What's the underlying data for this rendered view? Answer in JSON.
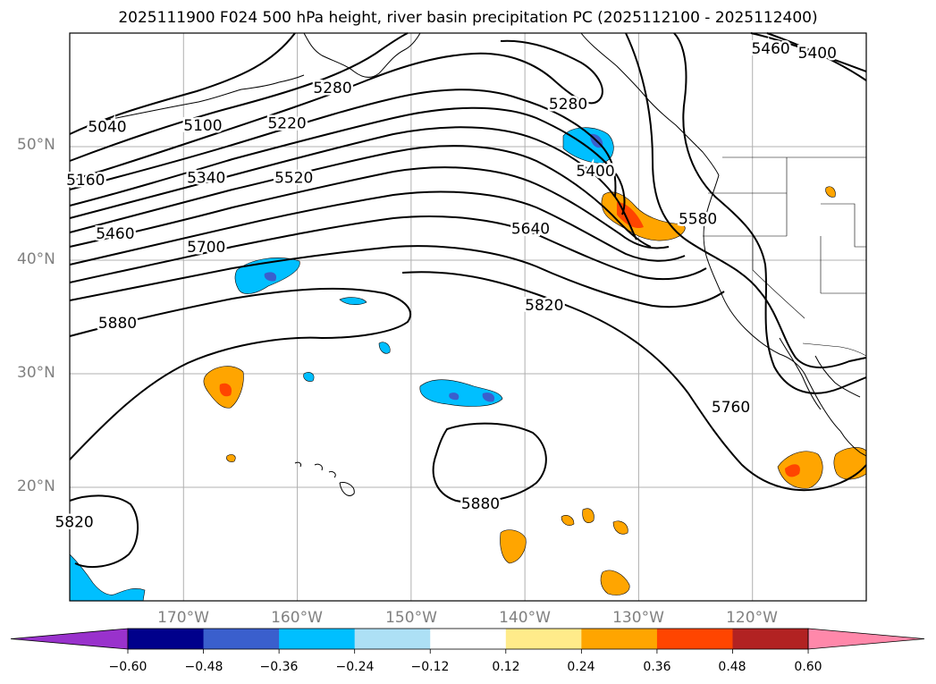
{
  "title": "2025111900 F024 500 hPa height, river basin precipitation PC (2025112100 - 2025112400)",
  "map": {
    "projection": "equirectangular",
    "lon_range": [
      -180,
      -110
    ],
    "lat_range": [
      10,
      60
    ],
    "gridlines": true,
    "lat_labels": [
      "50°N",
      "40°N",
      "30°N",
      "20°N"
    ],
    "lon_labels": [
      "170°W",
      "160°W",
      "150°W",
      "140°W",
      "130°W",
      "120°W"
    ]
  },
  "contours": {
    "variable": "500 hPa height",
    "labels": [
      {
        "text": "5040",
        "lon": -176.7,
        "lat": 51.7
      },
      {
        "text": "5160",
        "lon": -178.6,
        "lat": 47.0
      },
      {
        "text": "5100",
        "lon": -168.3,
        "lat": 51.8
      },
      {
        "text": "5220",
        "lon": -160.9,
        "lat": 52.0
      },
      {
        "text": "5280",
        "lon": -156.9,
        "lat": 55.1
      },
      {
        "text": "5340",
        "lon": -168.0,
        "lat": 47.2
      },
      {
        "text": "5460",
        "lon": -176.0,
        "lat": 42.3
      },
      {
        "text": "5520",
        "lon": -160.3,
        "lat": 47.2
      },
      {
        "text": "5700",
        "lon": -168.0,
        "lat": 41.1
      },
      {
        "text": "5880",
        "lon": -175.8,
        "lat": 34.4
      },
      {
        "text": "5280",
        "lon": -136.2,
        "lat": 53.7
      },
      {
        "text": "5400",
        "lon": -133.8,
        "lat": 47.8
      },
      {
        "text": "5640",
        "lon": -139.5,
        "lat": 42.7
      },
      {
        "text": "5580",
        "lon": -124.8,
        "lat": 43.6
      },
      {
        "text": "5460",
        "lon": -118.4,
        "lat": 58.6
      },
      {
        "text": "5400",
        "lon": -114.3,
        "lat": 58.2
      },
      {
        "text": "5820",
        "lon": -138.3,
        "lat": 36.0
      },
      {
        "text": "5760",
        "lon": -121.9,
        "lat": 27.0
      },
      {
        "text": "5880",
        "lon": -143.9,
        "lat": 18.5
      },
      {
        "text": "5820",
        "lon": -179.6,
        "lat": 16.9
      }
    ]
  },
  "colorbar": {
    "extend": "both",
    "bins": [
      "#9932CC",
      "#00008B",
      "#3A5FCD",
      "#00BFFF",
      "#ADE0F5",
      "#FFFFFF",
      "#FFEB8A",
      "#FFA500",
      "#FF4500",
      "#B22222",
      "#FF88AA"
    ],
    "tick_labels": [
      "−0.60",
      "−0.48",
      "−0.36",
      "−0.24",
      "−0.12",
      "0.12",
      "0.24",
      "0.36",
      "0.48",
      "0.60"
    ]
  },
  "precip_colors": {
    "neg_light": "#00BFFF",
    "neg_dark": "#3A5FCD",
    "pos_light": "#FFA500",
    "pos_dark": "#FF4500"
  }
}
